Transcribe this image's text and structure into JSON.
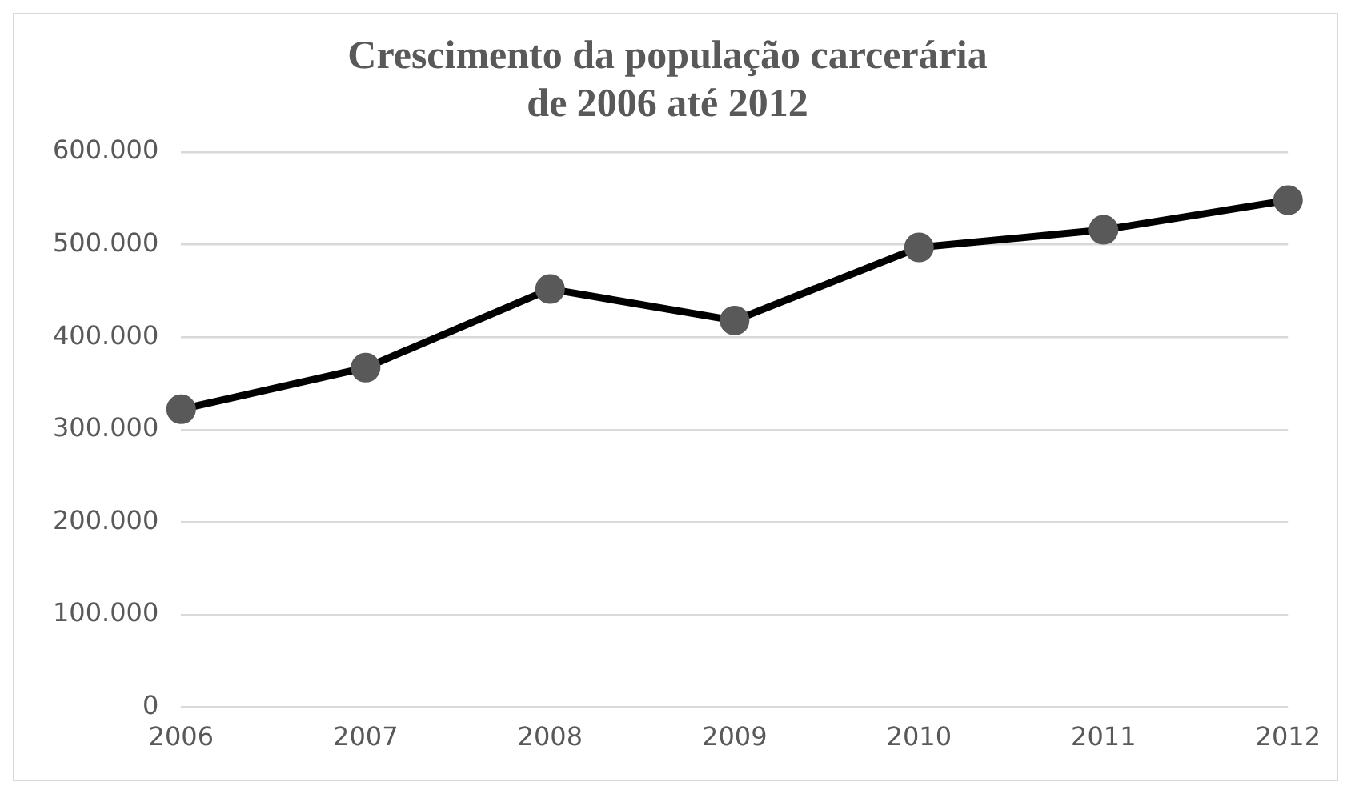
{
  "chart_data": {
    "type": "line",
    "title": "Crescimento da população carcerária\nde 2006 até 2012",
    "categories": [
      "2006",
      "2007",
      "2008",
      "2009",
      "2010",
      "2011",
      "2012"
    ],
    "series": [
      {
        "color": "#000000",
        "values": [
          322000,
          367000,
          452000,
          418000,
          497000,
          516000,
          548000
        ]
      }
    ],
    "ylim": [
      0,
      600000
    ],
    "yticks": [
      {
        "value": 0,
        "label": "0"
      },
      {
        "value": 100000,
        "label": "100.000"
      },
      {
        "value": 200000,
        "label": "200.000"
      },
      {
        "value": 300000,
        "label": "300.000"
      },
      {
        "value": 400000,
        "label": "400.000"
      },
      {
        "value": 500000,
        "label": "500.000"
      },
      {
        "value": 600000,
        "label": "600.000"
      }
    ],
    "grid": "y",
    "legend": false,
    "marker": "circle",
    "line_style": "solid"
  }
}
